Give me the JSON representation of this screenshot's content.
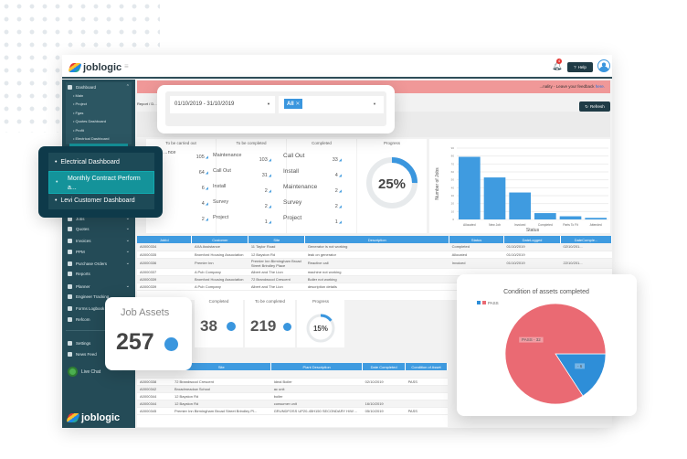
{
  "brand": "joblogic",
  "header": {
    "notification_count": "4",
    "help_label": "Help"
  },
  "banner": {
    "text": "...nality - Leave your feedback ",
    "link": "here."
  },
  "breadcrumb": "Report / D...",
  "date_short": "01/10/201...",
  "refresh_label": "Refresh",
  "filter": {
    "date_range": "01/10/2019 - 31/10/2019",
    "tag": "All"
  },
  "sidebar": {
    "dashboard": "Dashboard",
    "sub": [
      "Main",
      "Project",
      "Fgas",
      "Quotes Dashboard",
      "Profit",
      "Electrical Dashboard"
    ],
    "items": [
      "Jobs",
      "Quotes",
      "Invoices",
      "PPM",
      "Purchase Orders",
      "Reports",
      "Planner",
      "Engineer Tracking",
      "Forms Logbook",
      "Refcom"
    ],
    "bottom": [
      "Settings",
      "News Feed"
    ],
    "live_chat": "Live Chat"
  },
  "dash_popover": [
    "Electrical Dashboard",
    "Monthly Contract Perform a...",
    "Levi Customer Dashboard"
  ],
  "stats": {
    "carried_out": {
      "title": "To be carried out",
      "rows": [
        {
          "label": "...nce",
          "value": "105"
        },
        {
          "label": "",
          "value": "64"
        },
        {
          "label": "",
          "value": "6"
        },
        {
          "label": "",
          "value": "4"
        },
        {
          "label": "",
          "value": "2"
        }
      ]
    },
    "to_complete": {
      "title": "To be completed",
      "rows": [
        {
          "label": "Maintenance",
          "value": "103"
        },
        {
          "label": "Call Out",
          "value": "31"
        },
        {
          "label": "Install",
          "value": "2"
        },
        {
          "label": "Survey",
          "value": "2"
        },
        {
          "label": "Project",
          "value": "1"
        }
      ]
    },
    "completed": {
      "title": "Completed",
      "rows": [
        {
          "label": "Call Out",
          "value": "33"
        },
        {
          "label": "Install",
          "value": "4"
        },
        {
          "label": "Maintenance",
          "value": "2"
        },
        {
          "label": "Survey",
          "value": "2"
        },
        {
          "label": "Project",
          "value": "1"
        }
      ]
    },
    "progress": {
      "title": "Progress",
      "label": "25%",
      "value": 25
    }
  },
  "chart_data": [
    {
      "type": "bar",
      "categories": [
        "Allocated",
        "New Job",
        "Invoiced",
        "Completed",
        "Parts To Fit",
        "Attended"
      ],
      "values": [
        79,
        53,
        34,
        8,
        4,
        2
      ],
      "xlabel": "Status",
      "ylabel": "Number of Jobs",
      "ylim": [
        0,
        90
      ],
      "yticks": [
        0,
        10,
        20,
        30,
        40,
        50,
        60,
        70,
        80,
        90
      ],
      "grid": true,
      "color": "#3f9be0"
    },
    {
      "type": "pie",
      "title": "Condition of assets completed",
      "legend": [
        "",
        "PASS"
      ],
      "slices": [
        {
          "name": "PASS",
          "value": 32,
          "label": "PASS - 32",
          "color": "#ea6a73"
        },
        {
          "name": "",
          "value": 6,
          "label": "- 6",
          "color": "#2e8ed8"
        }
      ],
      "legend_position": "top-left"
    }
  ],
  "jobs_table": {
    "headers": [
      "JobId",
      "Customer",
      "Site",
      "Description",
      "Status",
      "DateLogged",
      "DateComple..."
    ],
    "rows": [
      [
        "A0000334",
        "AXA Assistance",
        "11 Taylor Road",
        "Generator is not working",
        "Completed",
        "01/10/2019",
        "02/10/201..."
      ],
      [
        "A0000335",
        "Bromford Housing Association",
        "12 Bayston Rd",
        "leak on generator",
        "Allocated",
        "01/10/2019",
        ""
      ],
      [
        "A0000336",
        "Premier Inn",
        "Premier Inn Birmingham Broad Street Brindley Place",
        "Reactive call",
        "Invoiced",
        "01/10/2019",
        "22/10/201..."
      ],
      [
        "A0000337",
        "A Pub Company",
        "Albert and The Lion",
        "machine not working",
        "",
        "",
        ""
      ],
      [
        "A0000339",
        "Bromford Housing Association",
        "72 Brandwood Crescent",
        "Boiler not working",
        "",
        "",
        ""
      ],
      [
        "A0000339",
        "A Pub Company",
        "Albert and The Lion",
        "description details",
        "",
        "",
        ""
      ]
    ]
  },
  "assets": {
    "title": "Job Assets",
    "total": "257",
    "completed_title": "Completed",
    "completed": "38",
    "to_complete_title": "To be completed",
    "to_complete": "219",
    "progress_title": "Progress",
    "progress_label": "15%",
    "progress": 15
  },
  "assets_table": {
    "headers": [
      "",
      "Site",
      "Plant Description",
      "Date Completed",
      "Condition of Asset"
    ],
    "rows": [
      [
        "",
        "",
        "",
        "",
        ""
      ],
      [
        "A0000338",
        "72 Brandwood Crescent",
        "Ideal Boiler",
        "02/10/2019",
        "PASS"
      ],
      [
        "A0000342",
        "Broadmeadow School",
        "ac unit",
        "",
        ""
      ],
      [
        "A0000344",
        "12 Bayston Rd",
        "boiler",
        "",
        ""
      ],
      [
        "A0000344",
        "12 Bayston Rd",
        "consumer unit",
        "16/10/2019",
        ""
      ],
      [
        "A0000345",
        "Premier Inn Birmingham Broad Street Brindley Pl...",
        "GRUNDFOSS UP20-45H150 SECONDARY H/W ...",
        "05/10/2019",
        "PASS"
      ]
    ]
  },
  "colors": {
    "sidebar": "#244b57",
    "accent": "#3f9be0",
    "banner": "#f09898",
    "popover": "#0e3a4a",
    "highlight": "#14939a"
  }
}
